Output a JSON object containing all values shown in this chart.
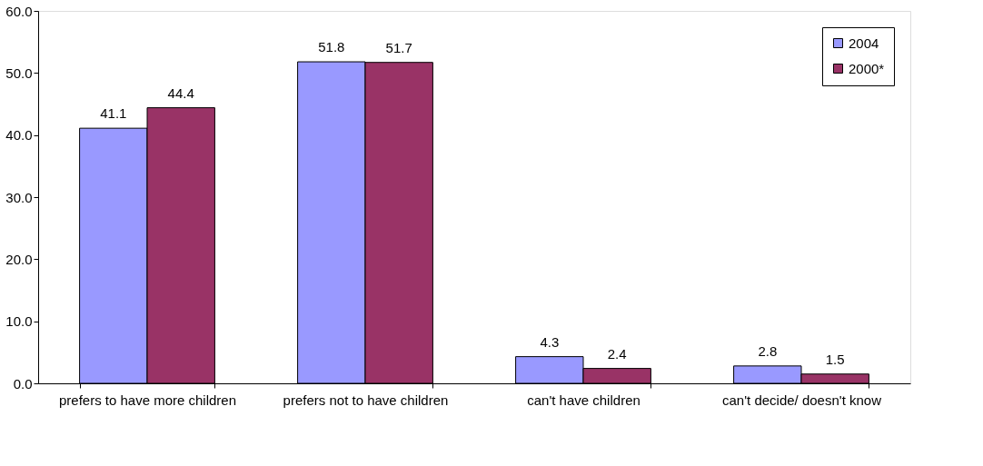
{
  "chart_data": {
    "type": "bar",
    "categories": [
      "prefers to have more children",
      "prefers not to have children",
      "can't have children",
      "can't decide/ doesn't know"
    ],
    "series": [
      {
        "name": "2004",
        "color": "#9999ff",
        "values": [
          41.1,
          51.8,
          4.3,
          2.8
        ]
      },
      {
        "name": "2000*",
        "color": "#993366",
        "values": [
          44.4,
          51.7,
          2.4,
          1.5
        ]
      }
    ],
    "ylim": [
      0,
      60
    ],
    "yticks": [
      {
        "value": 0,
        "label": "0.0"
      },
      {
        "value": 10,
        "label": "10.0"
      },
      {
        "value": 20,
        "label": "20.0"
      },
      {
        "value": 30,
        "label": "30.0"
      },
      {
        "value": 40,
        "label": "40.0"
      },
      {
        "value": 50,
        "label": "50.0"
      },
      {
        "value": 60,
        "label": "60.0"
      }
    ],
    "data_labels": true,
    "grid": false,
    "legend": "top right"
  }
}
